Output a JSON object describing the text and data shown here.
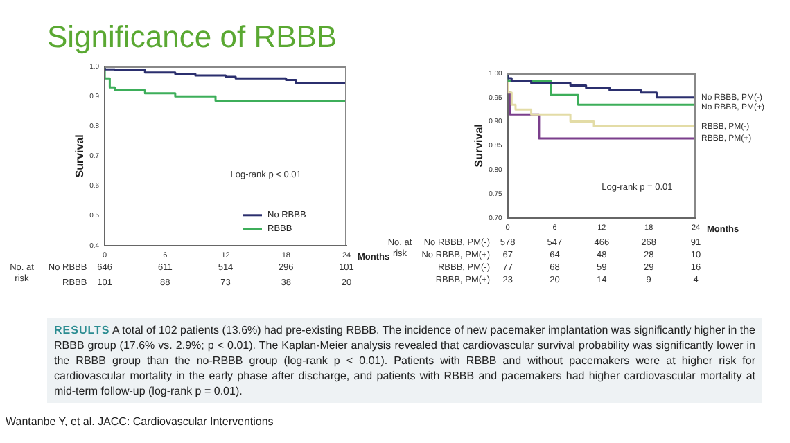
{
  "chart_data": [
    {
      "type": "step",
      "title": "Significance of RBBB",
      "xlabel": "Months",
      "ylabel": "Survival",
      "xlim": [
        0,
        24
      ],
      "xticks": [
        0,
        6,
        12,
        18,
        24
      ],
      "ylim": [
        0.4,
        1.0
      ],
      "yticks": [
        {
          "value": 0.4,
          "label": "0.4"
        },
        {
          "value": 0.5,
          "label": "0.5"
        },
        {
          "value": 0.6,
          "label": "0.6"
        },
        {
          "value": 0.7,
          "label": "0.7"
        },
        {
          "value": 0.8,
          "label": "0.8"
        },
        {
          "value": 0.9,
          "label": "0.9"
        },
        {
          "value": 1.0,
          "label": "1.0"
        }
      ],
      "legend": "bottom right",
      "grid": false,
      "series": [
        {
          "name": "No RBBB",
          "color": "#2b2f6e",
          "x": [
            0,
            1,
            4,
            7,
            9,
            12,
            13,
            18,
            19,
            21,
            24
          ],
          "values": [
            1,
            0.99,
            0.988,
            0.98,
            0.975,
            0.97,
            0.965,
            0.96,
            0.955,
            0.945,
            0.945
          ]
        },
        {
          "name": "RBBB",
          "color": "#3dae5a",
          "x": [
            0,
            0.5,
            1,
            4,
            7,
            11,
            12,
            24
          ],
          "values": [
            1,
            0.96,
            0.93,
            0.92,
            0.91,
            0.9,
            0.885,
            0.885
          ]
        }
      ],
      "annotations": [
        "Log-rank p < 0.01",
        "No. at risk",
        "No RBBB 646 611 514 296 101",
        "RBBB 101 88 73 38 20",
        "RESULTS A total of 102 patients (13.6%) had pre-existing RBBB. The incidence of new pacemaker implantation was significantly higher in the RBBB group (17.6% vs. 2.9%; p < 0.01). The Kaplan-Meier analysis revealed that cardiovascular survival probability was significantly lower in the RBBB group than the no-RBBB group (log-rank p < 0.01). Patients with RBBB and without pacemakers were at higher risk for cardiovascular mortality in the early phase after discharge, and patients with RBBB and pacemakers had higher cardiovascular mortality at mid-term follow-up (log-rank p = 0.01).",
        "Wantanbe Y, et al. JACC: Cardiovascular Interventions"
      ]
    },
    {
      "type": "step",
      "xlabel": "Months",
      "ylabel": "Survival",
      "xlim": [
        0,
        24
      ],
      "xticks": [
        0,
        6,
        12,
        18,
        24
      ],
      "ylim": [
        0.7,
        1.0
      ],
      "yticks": [
        {
          "value": 0.7,
          "label": "0.70"
        },
        {
          "value": 0.75,
          "label": "0.75"
        },
        {
          "value": 0.8,
          "label": "0.80"
        },
        {
          "value": 0.85,
          "label": "0.85"
        },
        {
          "value": 0.9,
          "label": "0.90"
        },
        {
          "value": 0.95,
          "label": "0.95"
        },
        {
          "value": 1.0,
          "label": "1.00"
        }
      ],
      "legend": false,
      "grid": false,
      "series": [
        {
          "name": "No RBBB, PM(-)",
          "color": "#2b2f6e",
          "x": [
            0,
            0.5,
            3,
            8,
            10,
            13,
            17,
            19,
            22,
            24
          ],
          "values": [
            1,
            0.99,
            0.985,
            0.98,
            0.975,
            0.97,
            0.965,
            0.96,
            0.95,
            0.95
          ]
        },
        {
          "name": "No RBBB, PM(+)",
          "color": "#3dae5a",
          "x": [
            0,
            5.5,
            9,
            11,
            24
          ],
          "values": [
            1,
            0.985,
            0.955,
            0.935,
            0.935
          ]
        },
        {
          "name": "RBBB, PM(-)",
          "color": "#e3dca6",
          "x": [
            0,
            0.5,
            1,
            3,
            8,
            11,
            12,
            24
          ],
          "values": [
            1,
            0.96,
            0.935,
            0.925,
            0.915,
            0.9,
            0.89,
            0.89
          ]
        },
        {
          "name": "RBBB, PM(+)",
          "color": "#7b3f8c",
          "x": [
            0,
            0.3,
            4,
            7,
            24
          ],
          "values": [
            1,
            0.96,
            0.915,
            0.865,
            0.865
          ]
        }
      ],
      "annotations": [
        "Log-rank p = 0.01",
        "No. at risk",
        "No RBBB, PM(-) 578 547 466 268 91",
        "No RBBB, PM(+) 67 64 48 28 10",
        "RBBB, PM(-) 77 68 59 29 16",
        "RBBB, PM(+) 23 20 14 9 4"
      ]
    }
  ]
}
